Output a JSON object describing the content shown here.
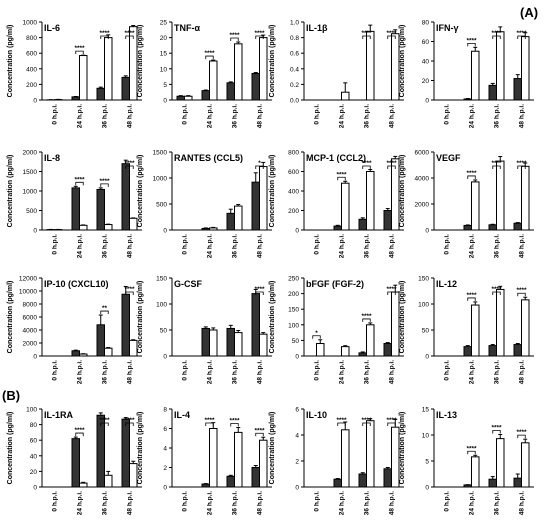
{
  "figure": {
    "section_a_label": "(A)",
    "section_b_label": "(B)",
    "y_axis_label": "Concentration (pg/ml)",
    "timepoints": [
      "0 h.p.i.",
      "24 h.p.i.",
      "36 h.p.i.",
      "48 h.p.i."
    ],
    "significance_marker": "****",
    "colors": {
      "filled": "#333333",
      "open": "#ffffff",
      "stroke": "#000000"
    }
  },
  "chart_data": [
    {
      "type": "bar",
      "title": "IL-6",
      "ylabel": "Concentration (pg/ml)",
      "categories": [
        "0 h.p.i.",
        "24 h.p.i.",
        "36 h.p.i.",
        "48 h.p.i."
      ],
      "ylim": [
        0,
        1000
      ],
      "yticks": [
        "0",
        "200",
        "400",
        "600",
        "800",
        "1000"
      ],
      "series": [
        {
          "values": [
            2,
            40,
            150,
            290
          ],
          "errors": [
            2,
            5,
            15,
            20
          ]
        },
        {
          "values": [
            5,
            570,
            800,
            940
          ],
          "errors": [
            3,
            5,
            35,
            15
          ]
        }
      ],
      "sig": [
        {
          "i": 1,
          "label": "****"
        },
        {
          "i": 2,
          "label": "****"
        },
        {
          "i": 3,
          "label": "****"
        }
      ]
    },
    {
      "type": "bar",
      "title": "TNF-α",
      "ylabel": "Concentration (pg/ml)",
      "categories": [
        "0 h.p.i.",
        "24 h.p.i.",
        "36 h.p.i.",
        "48 h.p.i."
      ],
      "ylim": [
        0,
        25
      ],
      "yticks": [
        "0",
        "5",
        "10",
        "15",
        "20",
        "25"
      ],
      "series": [
        {
          "values": [
            1.2,
            3,
            5.5,
            8.5
          ],
          "errors": [
            0.2,
            0.2,
            0.3,
            0.3
          ]
        },
        {
          "values": [
            1.2,
            12.5,
            18,
            20
          ],
          "errors": [
            0.2,
            0.3,
            0.6,
            0.8
          ]
        }
      ],
      "sig": [
        {
          "i": 1,
          "label": "****"
        },
        {
          "i": 2,
          "label": "****"
        },
        {
          "i": 3,
          "label": "****"
        }
      ]
    },
    {
      "type": "bar",
      "title": "IL-1β",
      "ylabel": "Concentration (pg/ml)",
      "categories": [
        "0 h.p.i.",
        "24 h.p.i.",
        "36 h.p.i.",
        "48 h.p.i."
      ],
      "ylim": [
        0,
        1.0
      ],
      "yticks": [
        "0.0",
        "0.2",
        "0.4",
        "0.6",
        "0.8",
        "1.0"
      ],
      "series": [
        {
          "values": [
            0,
            0,
            0,
            0
          ],
          "errors": [
            0,
            0,
            0,
            0
          ]
        },
        {
          "values": [
            0,
            0.1,
            0.88,
            0.85
          ],
          "errors": [
            0,
            0.12,
            0.08,
            0.05
          ]
        }
      ],
      "sig": [
        {
          "i": 2,
          "label": "****"
        },
        {
          "i": 3,
          "label": "****"
        }
      ]
    },
    {
      "type": "bar",
      "title": "IFN-γ",
      "ylabel": "Concentration (pg/ml)",
      "categories": [
        "0 h.p.i.",
        "24 h.p.i.",
        "36 h.p.i.",
        "48 h.p.i."
      ],
      "ylim": [
        0,
        80
      ],
      "yticks": [
        "0",
        "20",
        "40",
        "60",
        "80"
      ],
      "series": [
        {
          "values": [
            0,
            1,
            15,
            22
          ],
          "errors": [
            0,
            0.5,
            2,
            4
          ]
        },
        {
          "values": [
            0,
            50,
            70,
            65
          ],
          "errors": [
            0,
            4,
            5,
            4
          ]
        }
      ],
      "sig": [
        {
          "i": 1,
          "label": "****"
        },
        {
          "i": 2,
          "label": "****"
        },
        {
          "i": 3,
          "label": "****"
        }
      ]
    },
    {
      "type": "bar",
      "title": "IL-8",
      "ylabel": "Concentration (pg/ml)",
      "categories": [
        "0 h.p.i.",
        "24 h.p.i.",
        "36 h.p.i.",
        "48 h.p.i."
      ],
      "ylim": [
        0,
        2000
      ],
      "yticks": [
        "0",
        "500",
        "1000",
        "1500",
        "2000"
      ],
      "series": [
        {
          "values": [
            10,
            1080,
            1040,
            1700
          ],
          "errors": [
            5,
            40,
            40,
            90
          ]
        },
        {
          "values": [
            10,
            120,
            140,
            300
          ],
          "errors": [
            5,
            10,
            10,
            10
          ]
        }
      ],
      "sig": [
        {
          "i": 1,
          "label": "****"
        },
        {
          "i": 2,
          "label": "****"
        },
        {
          "i": 3,
          "label": "****"
        }
      ]
    },
    {
      "type": "bar",
      "title": "RANTES (CCL5)",
      "ylabel": "Concentration (pg/ml)",
      "categories": [
        "0 h.p.i.",
        "24 h.p.i.",
        "36 h.p.i.",
        "48 h.p.i."
      ],
      "ylim": [
        0,
        1500
      ],
      "yticks": [
        "0",
        "500",
        "1000",
        "1500"
      ],
      "series": [
        {
          "values": [
            0,
            30,
            320,
            920
          ],
          "errors": [
            0,
            10,
            80,
            180
          ]
        },
        {
          "values": [
            0,
            40,
            460,
            1220
          ],
          "errors": [
            0,
            10,
            30,
            80
          ]
        }
      ],
      "sig": [
        {
          "i": 3,
          "label": "*"
        }
      ]
    },
    {
      "type": "bar",
      "title": "MCP-1 (CCL2)",
      "ylabel": "Concentration (pg/ml)",
      "categories": [
        "0 h.p.i.",
        "24 h.p.i.",
        "36 h.p.i.",
        "48 h.p.i."
      ],
      "ylim": [
        0,
        800
      ],
      "yticks": [
        "0",
        "200",
        "400",
        "600",
        "800"
      ],
      "series": [
        {
          "values": [
            0,
            40,
            110,
            200
          ],
          "errors": [
            0,
            8,
            15,
            20
          ]
        },
        {
          "values": [
            0,
            480,
            600,
            730
          ],
          "errors": [
            0,
            20,
            20,
            25
          ]
        }
      ],
      "sig": [
        {
          "i": 1,
          "label": "****"
        },
        {
          "i": 2,
          "label": "****"
        },
        {
          "i": 3,
          "label": "****"
        }
      ]
    },
    {
      "type": "bar",
      "title": "VEGF",
      "ylabel": "Concentration (pg/ml)",
      "categories": [
        "0 h.p.i.",
        "24 h.p.i.",
        "36 h.p.i.",
        "48 h.p.i."
      ],
      "ylim": [
        0,
        6000
      ],
      "yticks": [
        "0",
        "2000",
        "4000",
        "6000"
      ],
      "series": [
        {
          "values": [
            0,
            350,
            400,
            520
          ],
          "errors": [
            0,
            40,
            40,
            50
          ]
        },
        {
          "values": [
            0,
            3700,
            5300,
            4900
          ],
          "errors": [
            0,
            150,
            350,
            250
          ]
        }
      ],
      "sig": [
        {
          "i": 1,
          "label": "****"
        },
        {
          "i": 2,
          "label": "****"
        },
        {
          "i": 3,
          "label": "****"
        }
      ]
    },
    {
      "type": "bar",
      "title": "IP-10 (CXCL10)",
      "ylabel": "Concentration (pg/ml)",
      "categories": [
        "0 h.p.i.",
        "24 h.p.i.",
        "36 h.p.i.",
        "48 h.p.i."
      ],
      "ylim": [
        0,
        12000
      ],
      "yticks": [
        "0",
        "2000",
        "4000",
        "6000",
        "8000",
        "10000",
        "12000"
      ],
      "series": [
        {
          "values": [
            0,
            800,
            4800,
            9500
          ],
          "errors": [
            0,
            100,
            1500,
            1200
          ]
        },
        {
          "values": [
            0,
            300,
            1200,
            2400
          ],
          "errors": [
            0,
            50,
            100,
            100
          ]
        }
      ],
      "sig": [
        {
          "i": 2,
          "label": "**"
        },
        {
          "i": 3,
          "label": "****"
        }
      ]
    },
    {
      "type": "bar",
      "title": "G-CSF",
      "ylabel": "Concentration (pg/ml)",
      "categories": [
        "0 h.p.i.",
        "24 h.p.i.",
        "36 h.p.i.",
        "48 h.p.i."
      ],
      "ylim": [
        0,
        150
      ],
      "yticks": [
        "0",
        "50",
        "100",
        "150"
      ],
      "series": [
        {
          "values": [
            0,
            53,
            53,
            120
          ],
          "errors": [
            0,
            3,
            6,
            8
          ]
        },
        {
          "values": [
            0,
            50,
            45,
            42
          ],
          "errors": [
            0,
            4,
            4,
            3
          ]
        }
      ],
      "sig": [
        {
          "i": 3,
          "label": "****"
        }
      ]
    },
    {
      "type": "bar",
      "title": "bFGF (FGF-2)",
      "ylabel": "Concentration (pg/ml)",
      "categories": [
        "0 h.p.i.",
        "24 h.p.i.",
        "36 h.p.i.",
        "48 h.p.i."
      ],
      "ylim": [
        0,
        250
      ],
      "yticks": [
        "0",
        "50",
        "100",
        "150",
        "200",
        "250"
      ],
      "series": [
        {
          "values": [
            0,
            0,
            10,
            40
          ],
          "errors": [
            0,
            0,
            3,
            3
          ]
        },
        {
          "values": [
            40,
            30,
            100,
            205
          ],
          "errors": [
            12,
            3,
            6,
            22
          ]
        }
      ],
      "sig": [
        {
          "i": 0,
          "label": "*"
        },
        {
          "i": 2,
          "label": "****"
        },
        {
          "i": 3,
          "label": "****"
        }
      ]
    },
    {
      "type": "bar",
      "title": "IL-12",
      "ylabel": "Concentration (pg/ml)",
      "categories": [
        "0 h.p.i.",
        "24 h.p.i.",
        "36 h.p.i.",
        "48 h.p.i."
      ],
      "ylim": [
        0,
        150
      ],
      "yticks": [
        "0",
        "50",
        "100",
        "150"
      ],
      "series": [
        {
          "values": [
            0,
            18,
            20,
            22
          ],
          "errors": [
            0,
            2,
            2,
            2
          ]
        },
        {
          "values": [
            0,
            98,
            128,
            108
          ],
          "errors": [
            0,
            6,
            6,
            5
          ]
        }
      ],
      "sig": [
        {
          "i": 1,
          "label": "****"
        },
        {
          "i": 2,
          "label": "****"
        },
        {
          "i": 3,
          "label": "****"
        }
      ]
    },
    {
      "type": "bar",
      "title": "IL-1RA",
      "ylabel": "Concentration (pg/ml)",
      "categories": [
        "0 h.p.i.",
        "24 h.p.i.",
        "36 h.p.i.",
        "48 h.p.i."
      ],
      "ylim": [
        0,
        100
      ],
      "yticks": [
        "0",
        "20",
        "40",
        "60",
        "80",
        "100"
      ],
      "series": [
        {
          "values": [
            0,
            62,
            92,
            87
          ],
          "errors": [
            0,
            2,
            3,
            2
          ]
        },
        {
          "values": [
            0,
            5,
            15,
            30
          ],
          "errors": [
            0,
            1,
            5,
            3
          ]
        }
      ],
      "sig": [
        {
          "i": 1,
          "label": "****"
        },
        {
          "i": 2,
          "label": "****"
        },
        {
          "i": 3,
          "label": "****"
        }
      ]
    },
    {
      "type": "bar",
      "title": "IL-4",
      "ylabel": "Concentration (pg/ml)",
      "categories": [
        "0 h.p.i.",
        "24 h.p.i.",
        "36 h.p.i.",
        "48 h.p.i."
      ],
      "ylim": [
        0,
        8
      ],
      "yticks": [
        "0",
        "2",
        "4",
        "6",
        "8"
      ],
      "series": [
        {
          "values": [
            0,
            0.3,
            1.1,
            2
          ],
          "errors": [
            0,
            0.05,
            0.1,
            0.2
          ]
        },
        {
          "values": [
            0,
            6,
            5.6,
            4.8
          ],
          "errors": [
            0,
            0.6,
            0.5,
            0.3
          ]
        }
      ],
      "sig": [
        {
          "i": 1,
          "label": "****"
        },
        {
          "i": 2,
          "label": "****"
        },
        {
          "i": 3,
          "label": "****"
        }
      ]
    },
    {
      "type": "bar",
      "title": "IL-10",
      "ylabel": "Concentration (pg/ml)",
      "categories": [
        "0 h.p.i.",
        "24 h.p.i.",
        "36 h.p.i.",
        "48 h.p.i."
      ],
      "ylim": [
        0,
        6
      ],
      "yticks": [
        "0",
        "2",
        "4",
        "6"
      ],
      "series": [
        {
          "values": [
            0,
            0.6,
            1,
            1.4
          ],
          "errors": [
            0,
            0.05,
            0.1,
            0.1
          ]
        },
        {
          "values": [
            0,
            4.4,
            5.1,
            4.6
          ],
          "errors": [
            0,
            0.6,
            0.15,
            0.6
          ]
        }
      ],
      "sig": [
        {
          "i": 1,
          "label": "****"
        },
        {
          "i": 2,
          "label": "****"
        },
        {
          "i": 3,
          "label": "****"
        }
      ]
    },
    {
      "type": "bar",
      "title": "IL-13",
      "ylabel": "Concentration (pg/ml)",
      "categories": [
        "0 h.p.i.",
        "24 h.p.i.",
        "36 h.p.i.",
        "48 h.p.i."
      ],
      "ylim": [
        0,
        15
      ],
      "yticks": [
        "0",
        "5",
        "10",
        "15"
      ],
      "series": [
        {
          "values": [
            0,
            0.4,
            1.5,
            1.7
          ],
          "errors": [
            0,
            0.05,
            0.5,
            0.8
          ]
        },
        {
          "values": [
            0,
            5.8,
            9.3,
            8.5
          ],
          "errors": [
            0,
            0.3,
            0.8,
            0.7
          ]
        }
      ],
      "sig": [
        {
          "i": 1,
          "label": "****"
        },
        {
          "i": 2,
          "label": "****"
        },
        {
          "i": 3,
          "label": "****"
        }
      ]
    }
  ]
}
